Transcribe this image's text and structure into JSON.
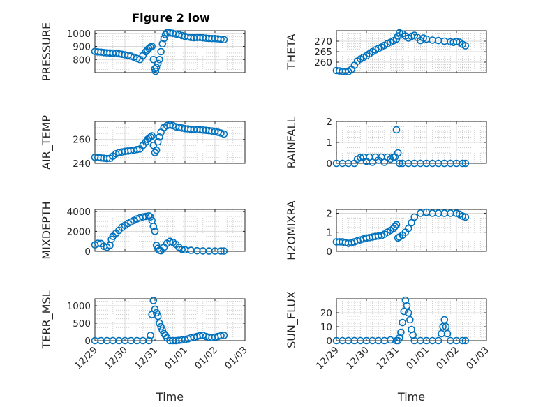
{
  "figure": {
    "title": "Figure 2 low",
    "marker_color": "#0072BD"
  },
  "chart_data": [
    {
      "type": "scatter",
      "ylabel": "PRESSURE",
      "xlabel": "",
      "xlim": [
        0,
        5
      ],
      "ylim": [
        700,
        1020
      ],
      "yticks": [
        800,
        900,
        1000
      ],
      "xticks": [],
      "marker": "circle",
      "grid": "on (major and minor)",
      "x": [
        0,
        0.1,
        0.2,
        0.3,
        0.4,
        0.5,
        0.6,
        0.7,
        0.8,
        0.9,
        1.0,
        1.1,
        1.2,
        1.3,
        1.4,
        1.5,
        1.6,
        1.7,
        1.75,
        1.8,
        1.85,
        1.9,
        1.95,
        2.0,
        2.02,
        2.05,
        2.1,
        2.15,
        2.2,
        2.25,
        2.3,
        2.35,
        2.4,
        2.5,
        2.6,
        2.7,
        2.8,
        2.9,
        3.0,
        3.1,
        3.2,
        3.3,
        3.4,
        3.5,
        3.6,
        3.7,
        3.8,
        3.9,
        4.0,
        4.1,
        4.2,
        4.3
      ],
      "y": [
        862,
        858,
        856,
        853,
        851,
        850,
        849,
        846,
        843,
        840,
        836,
        832,
        826,
        818,
        808,
        800,
        830,
        860,
        872,
        885,
        895,
        900,
        800,
        730,
        710,
        740,
        770,
        800,
        860,
        920,
        960,
        990,
        1005,
        1003,
        1000,
        995,
        990,
        983,
        977,
        972,
        968,
        966,
        968,
        968,
        966,
        963,
        961,
        960,
        960,
        958,
        955,
        952
      ]
    },
    {
      "type": "scatter",
      "ylabel": "THETA",
      "xlabel": "",
      "xlim": [
        0,
        5
      ],
      "ylim": [
        255,
        275
      ],
      "yticks": [
        260,
        265,
        270
      ],
      "xticks": [],
      "marker": "circle",
      "grid": "on (major and minor)",
      "x": [
        0,
        0.1,
        0.2,
        0.3,
        0.4,
        0.5,
        0.6,
        0.7,
        0.8,
        0.9,
        1.0,
        1.1,
        1.2,
        1.3,
        1.4,
        1.5,
        1.6,
        1.7,
        1.8,
        1.9,
        2.0,
        2.05,
        2.1,
        2.2,
        2.3,
        2.4,
        2.5,
        2.6,
        2.7,
        2.8,
        2.9,
        3.0,
        3.2,
        3.4,
        3.6,
        3.8,
        3.9,
        4.0,
        4.1,
        4.2,
        4.3
      ],
      "y": [
        256,
        255.8,
        255.6,
        255.5,
        255.5,
        256.5,
        258.5,
        260.5,
        261.5,
        262.3,
        263,
        264,
        265,
        265.8,
        266.5,
        267.2,
        268,
        268.8,
        269.5,
        270.2,
        271,
        272.5,
        274,
        273.5,
        272.5,
        271.5,
        272.3,
        272.8,
        271.8,
        270.3,
        271.5,
        271,
        270.5,
        270.3,
        270,
        269.7,
        269.4,
        269.8,
        269.5,
        268.5,
        267.8
      ]
    },
    {
      "type": "scatter",
      "ylabel": "AIR_TEMP",
      "xlabel": "",
      "xlim": [
        0,
        5
      ],
      "ylim": [
        240,
        275
      ],
      "yticks": [
        240,
        260
      ],
      "xticks": [],
      "marker": "circle",
      "grid": "on (major and minor)",
      "x": [
        0,
        0.1,
        0.2,
        0.3,
        0.4,
        0.5,
        0.6,
        0.7,
        0.8,
        0.9,
        1.0,
        1.1,
        1.2,
        1.3,
        1.4,
        1.5,
        1.6,
        1.7,
        1.75,
        1.8,
        1.85,
        1.9,
        1.95,
        2.0,
        2.05,
        2.1,
        2.15,
        2.2,
        2.3,
        2.4,
        2.5,
        2.6,
        2.7,
        2.8,
        2.9,
        3.0,
        3.1,
        3.2,
        3.3,
        3.4,
        3.5,
        3.6,
        3.7,
        3.8,
        3.9,
        4.0,
        4.1,
        4.2,
        4.3
      ],
      "y": [
        245,
        244.8,
        244.5,
        244.3,
        244,
        244.2,
        246,
        248,
        249,
        249.5,
        250,
        250.3,
        250.5,
        251,
        251.5,
        252,
        255,
        258,
        260,
        261,
        262,
        263,
        255,
        249,
        251,
        258,
        262,
        266,
        270,
        271.5,
        272,
        271.5,
        270.5,
        270,
        269.5,
        269,
        268.8,
        268.5,
        268.3,
        268.1,
        268,
        267.8,
        267.6,
        267.3,
        267,
        266.6,
        266,
        265.3,
        264.5
      ]
    },
    {
      "type": "scatter",
      "ylabel": "RAINFALL",
      "xlabel": "",
      "xlim": [
        0,
        5
      ],
      "ylim": [
        0,
        2
      ],
      "yticks": [
        0,
        1,
        2
      ],
      "xticks": [],
      "marker": "circle",
      "grid": "on (major and minor)",
      "x": [
        0,
        0.2,
        0.4,
        0.6,
        0.7,
        0.8,
        0.9,
        1.0,
        1.1,
        1.2,
        1.3,
        1.4,
        1.5,
        1.6,
        1.7,
        1.8,
        1.9,
        1.95,
        2.0,
        2.05,
        2.1,
        2.2,
        2.4,
        2.6,
        2.8,
        3.0,
        3.2,
        3.4,
        3.6,
        3.8,
        4.0,
        4.2,
        4.3
      ],
      "y": [
        0,
        0,
        0,
        0,
        0.2,
        0.28,
        0.3,
        0.1,
        0.3,
        0.05,
        0.3,
        0.15,
        0.3,
        0.05,
        0.3,
        0.2,
        0.3,
        0.3,
        1.6,
        0.5,
        0,
        0,
        0,
        0,
        0,
        0,
        0,
        0,
        0,
        0,
        0,
        0,
        0
      ]
    },
    {
      "type": "scatter",
      "ylabel": "MIXDEPTH",
      "xlabel": "",
      "xlim": [
        0,
        5
      ],
      "ylim": [
        0,
        4200
      ],
      "yticks": [
        0,
        2000,
        4000
      ],
      "xticks": [],
      "marker": "circle",
      "grid": "on (major and minor)",
      "x": [
        0,
        0.1,
        0.2,
        0.3,
        0.4,
        0.5,
        0.55,
        0.6,
        0.7,
        0.8,
        0.9,
        1.0,
        1.1,
        1.2,
        1.3,
        1.4,
        1.5,
        1.6,
        1.7,
        1.8,
        1.85,
        1.9,
        1.95,
        2.0,
        2.05,
        2.1,
        2.15,
        2.2,
        2.3,
        2.4,
        2.5,
        2.6,
        2.7,
        2.8,
        2.9,
        3.0,
        3.2,
        3.4,
        3.6,
        3.8,
        4.0,
        4.2,
        4.3
      ],
      "y": [
        650,
        800,
        780,
        500,
        400,
        600,
        1200,
        1500,
        1800,
        2100,
        2400,
        2600,
        2800,
        2950,
        3100,
        3250,
        3350,
        3450,
        3500,
        3550,
        3450,
        3100,
        2500,
        2000,
        600,
        300,
        100,
        50,
        400,
        800,
        1000,
        900,
        700,
        400,
        200,
        150,
        100,
        60,
        40,
        30,
        30,
        30,
        30
      ]
    },
    {
      "type": "scatter",
      "ylabel": "H2OMIXRA",
      "xlabel": "",
      "xlim": [
        0,
        5
      ],
      "ylim": [
        0,
        2.2
      ],
      "yticks": [
        0,
        1,
        2
      ],
      "xticks": [],
      "marker": "circle",
      "grid": "on (major and minor)",
      "x": [
        0,
        0.1,
        0.2,
        0.3,
        0.4,
        0.5,
        0.6,
        0.7,
        0.8,
        0.9,
        1.0,
        1.1,
        1.2,
        1.3,
        1.4,
        1.5,
        1.6,
        1.7,
        1.8,
        1.9,
        1.95,
        2.0,
        2.05,
        2.1,
        2.2,
        2.3,
        2.4,
        2.5,
        2.6,
        2.8,
        3.0,
        3.2,
        3.4,
        3.6,
        3.8,
        4.0,
        4.1,
        4.2,
        4.3
      ],
      "y": [
        0.5,
        0.5,
        0.5,
        0.45,
        0.42,
        0.45,
        0.5,
        0.55,
        0.6,
        0.65,
        0.7,
        0.72,
        0.75,
        0.78,
        0.8,
        0.82,
        0.9,
        1.0,
        1.1,
        1.2,
        1.3,
        1.4,
        0.7,
        0.75,
        0.85,
        1.0,
        1.2,
        1.5,
        1.8,
        2.0,
        2.05,
        2.0,
        2.0,
        2.0,
        2.0,
        2.0,
        1.95,
        1.85,
        1.8
      ]
    },
    {
      "type": "scatter",
      "ylabel": "TERR_MSL",
      "xlabel": "Time",
      "xlim": [
        0,
        5
      ],
      "ylim": [
        0,
        1200
      ],
      "yticks": [
        0,
        500,
        1000
      ],
      "xticks": [
        0,
        1,
        2,
        3,
        4,
        5
      ],
      "xticklabels": [
        "12/29",
        "12/30",
        "12/31",
        "01/01",
        "01/02",
        "01/03"
      ],
      "marker": "circle",
      "grid": "on (major and minor)",
      "x": [
        0,
        0.2,
        0.4,
        0.6,
        0.8,
        1.0,
        1.2,
        1.4,
        1.6,
        1.8,
        1.85,
        1.9,
        1.95,
        2.0,
        2.05,
        2.1,
        2.15,
        2.2,
        2.25,
        2.3,
        2.35,
        2.4,
        2.5,
        2.6,
        2.7,
        2.8,
        2.9,
        3.0,
        3.1,
        3.2,
        3.3,
        3.4,
        3.5,
        3.6,
        3.7,
        3.8,
        3.9,
        4.0,
        4.1,
        4.2,
        4.3
      ],
      "y": [
        0,
        0,
        0,
        0,
        0,
        0,
        0,
        0,
        0,
        0,
        150,
        750,
        1150,
        900,
        800,
        700,
        500,
        400,
        300,
        200,
        150,
        80,
        0,
        0,
        0,
        10,
        20,
        30,
        50,
        80,
        100,
        120,
        140,
        150,
        120,
        100,
        90,
        100,
        120,
        140,
        150
      ]
    },
    {
      "type": "scatter",
      "ylabel": "SUN_FLUX",
      "xlabel": "Time",
      "xlim": [
        0,
        5
      ],
      "ylim": [
        0,
        30
      ],
      "yticks": [
        0,
        10,
        20
      ],
      "xticks": [
        0,
        1,
        2,
        3,
        4,
        5
      ],
      "xticklabels": [
        "12/29",
        "12/30",
        "12/31",
        "01/01",
        "01/02",
        "01/03"
      ],
      "marker": "circle",
      "grid": "on (major and minor)",
      "x": [
        0,
        0.2,
        0.4,
        0.6,
        0.8,
        1.0,
        1.2,
        1.4,
        1.6,
        1.8,
        2.0,
        2.05,
        2.1,
        2.15,
        2.2,
        2.25,
        2.3,
        2.35,
        2.4,
        2.45,
        2.5,
        2.55,
        2.6,
        2.8,
        3.0,
        3.2,
        3.4,
        3.5,
        3.55,
        3.6,
        3.65,
        3.7,
        3.8,
        4.0,
        4.2,
        4.3
      ],
      "y": [
        0,
        0,
        0,
        0,
        0,
        0,
        0,
        0,
        0,
        0.5,
        0,
        0,
        2,
        6,
        13,
        21,
        29,
        25,
        20,
        15,
        8,
        4,
        0,
        0,
        0,
        0,
        0,
        5,
        10,
        15,
        10,
        5,
        0,
        0,
        0,
        0
      ]
    }
  ]
}
